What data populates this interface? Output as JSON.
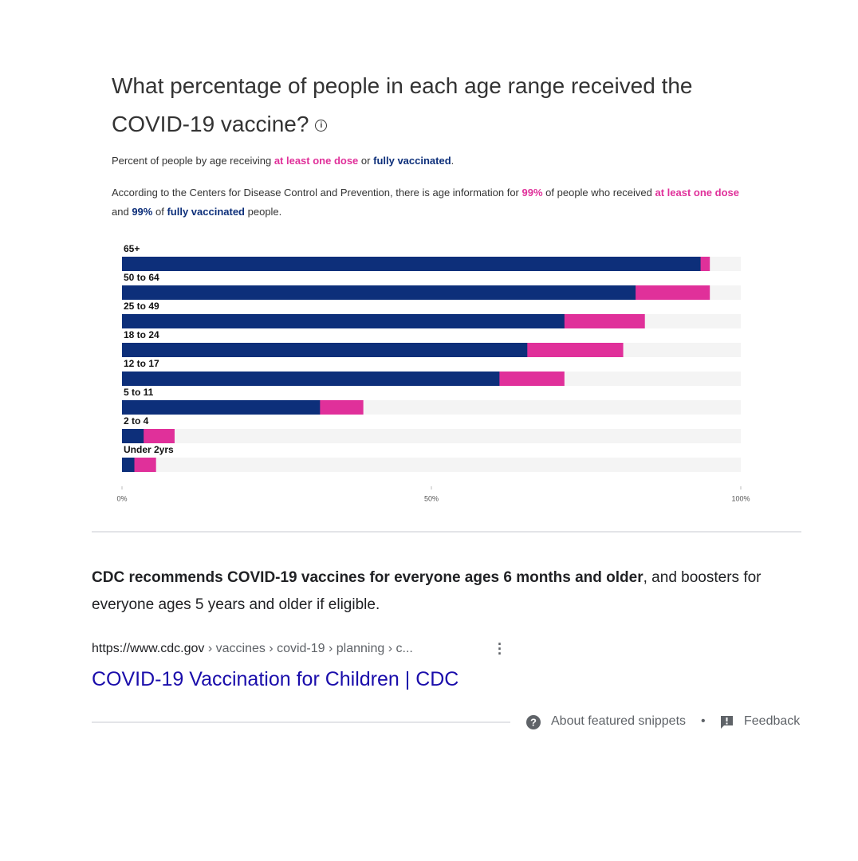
{
  "chart_data": {
    "type": "bar",
    "orientation": "horizontal",
    "title": "What percentage of people in each age range received the COVID-19 vaccine?",
    "subtitle": [
      "Percent of people by age receiving",
      "or"
    ],
    "description": [
      "According to the Centers for Disease Control and Prevention, there is age information for",
      "99%",
      "of people who received",
      "at least one dose",
      "and",
      "99%",
      "of",
      "fully vaccinated",
      "people."
    ],
    "categories": [
      "65+",
      "50 to 64",
      "25 to 49",
      "18 to 24",
      "12 to 17",
      "5 to 11",
      "2 to 4",
      "Under 2yrs"
    ],
    "series": [
      {
        "name": "at least one dose",
        "color": "#e0309a",
        "values": [
          95,
          95,
          84.5,
          81,
          71.5,
          39,
          8.5,
          5.5
        ]
      },
      {
        "name": "fully vaccinated",
        "color": "#0d2f7a",
        "values": [
          93.5,
          83,
          71.5,
          65.5,
          61,
          32,
          3.5,
          2
        ]
      }
    ],
    "xlim": [
      0,
      100
    ],
    "xticks": [
      {
        "value": 0,
        "label": "0%"
      },
      {
        "value": 50,
        "label": "50%"
      },
      {
        "value": 100,
        "label": "100%"
      }
    ]
  },
  "snippet": {
    "bold": "CDC recommends COVID-19 vaccines for everyone ages 6 months and older",
    "text": ", and boosters for everyone ages 5 years and older if eligible.",
    "url": "https://www.cdc.gov",
    "breadcrumb": " › vaccines › covid-19 › planning › c...",
    "link": "COVID-19 Vaccination for Children | CDC"
  },
  "footer": {
    "about": "About featured snippets",
    "separator": "•",
    "feedback": "Feedback"
  }
}
